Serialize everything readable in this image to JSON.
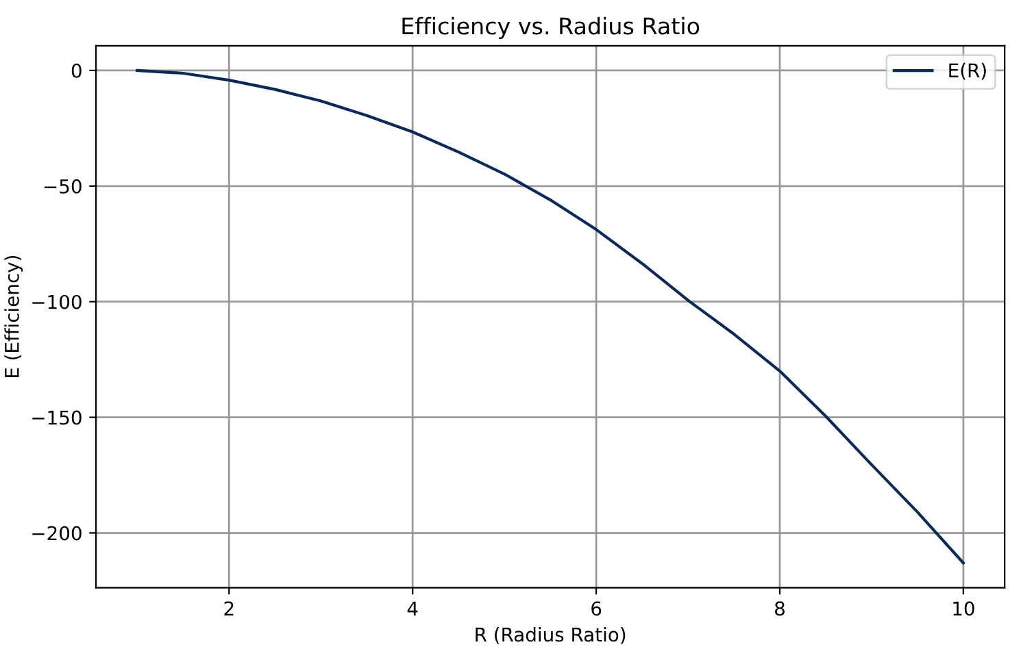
{
  "chart_data": {
    "type": "line",
    "title": "Efficiency vs. Radius Ratio",
    "xlabel": "R (Radius Ratio)",
    "ylabel": "E (Efficiency)",
    "x": [
      1,
      1.5,
      2,
      2.5,
      3,
      3.5,
      4,
      4.5,
      5,
      5.5,
      6,
      6.5,
      7,
      7.5,
      8,
      8.5,
      9,
      9.5,
      10
    ],
    "series": [
      {
        "name": "E(R)",
        "color": "#0b2a5c",
        "values": [
          0,
          -1.2,
          -4.2,
          -8.2,
          -13.2,
          -19.5,
          -26.6,
          -35.3,
          -44.8,
          -56,
          -68.8,
          -83.5,
          -99.4,
          -114,
          -130,
          -149.5,
          -170.5,
          -191,
          -213
        ]
      }
    ],
    "xlim": [
      0.55,
      10.45
    ],
    "ylim": [
      -223.7,
      10.7
    ],
    "xticks": [
      2,
      4,
      6,
      8,
      10
    ],
    "yticks": [
      -200,
      -150,
      -100,
      -50,
      0
    ],
    "grid": true,
    "legend": "top right",
    "marker": "none",
    "line_style": "solid"
  }
}
